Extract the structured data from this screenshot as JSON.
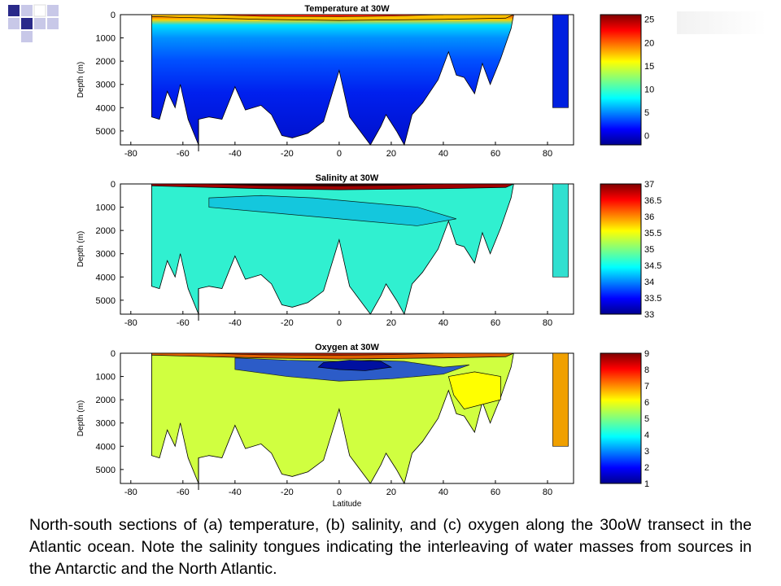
{
  "caption": "North-south sections of (a) temperature, (b) salinity, and (c) oxygen along the 30oW transect in the Atlantic ocean. Note the salinity tongues indicating the interleaving of water masses from sources in the Antarctic and the North Atlantic.",
  "chart_data": [
    {
      "type": "heatmap",
      "title": "Temperature at 30W",
      "ylabel": "Depth (m)",
      "xlabel": "",
      "x_ticks": [
        -80,
        -60,
        -40,
        -20,
        0,
        20,
        40,
        60,
        80
      ],
      "y_ticks": [
        0,
        1000,
        2000,
        3000,
        4000,
        5000
      ],
      "xlim": [
        -84,
        90
      ],
      "ylim": [
        5600,
        0
      ],
      "colorbar": {
        "ticks": [
          "0",
          "5",
          "10",
          "15",
          "20",
          "25"
        ],
        "range": [
          -2,
          26
        ]
      },
      "description_values": {
        "surface_max": 26,
        "deep_min": 0
      }
    },
    {
      "type": "heatmap",
      "title": "Salinity at 30W",
      "ylabel": "Depth (m)",
      "xlabel": "",
      "x_ticks": [
        -80,
        -60,
        -40,
        -20,
        0,
        20,
        40,
        60,
        80
      ],
      "y_ticks": [
        0,
        1000,
        2000,
        3000,
        4000,
        5000
      ],
      "xlim": [
        -84,
        90
      ],
      "ylim": [
        5600,
        0
      ],
      "colorbar": {
        "ticks": [
          "37",
          "36.5",
          "36",
          "35.5",
          "35",
          "34.5",
          "34",
          "33.5",
          "33"
        ],
        "range": [
          33,
          37
        ]
      },
      "description_values": {
        "surface_max": 37.2,
        "intermediate_min": 34.3
      }
    },
    {
      "type": "heatmap",
      "title": "Oxygen at 30W",
      "ylabel": "Depth (m)",
      "xlabel": "Latitude",
      "x_ticks": [
        -80,
        -60,
        -40,
        -20,
        0,
        20,
        40,
        60,
        80
      ],
      "y_ticks": [
        0,
        1000,
        2000,
        3000,
        4000,
        5000
      ],
      "xlim": [
        -84,
        90
      ],
      "ylim": [
        5600,
        0
      ],
      "colorbar": {
        "ticks": [
          "9",
          "8",
          "7",
          "6",
          "5",
          "4",
          "3",
          "2",
          "1"
        ],
        "range": [
          1,
          9
        ]
      },
      "description_values": {
        "surface_max": 8.5,
        "minimum_zone": 2.3
      }
    }
  ]
}
